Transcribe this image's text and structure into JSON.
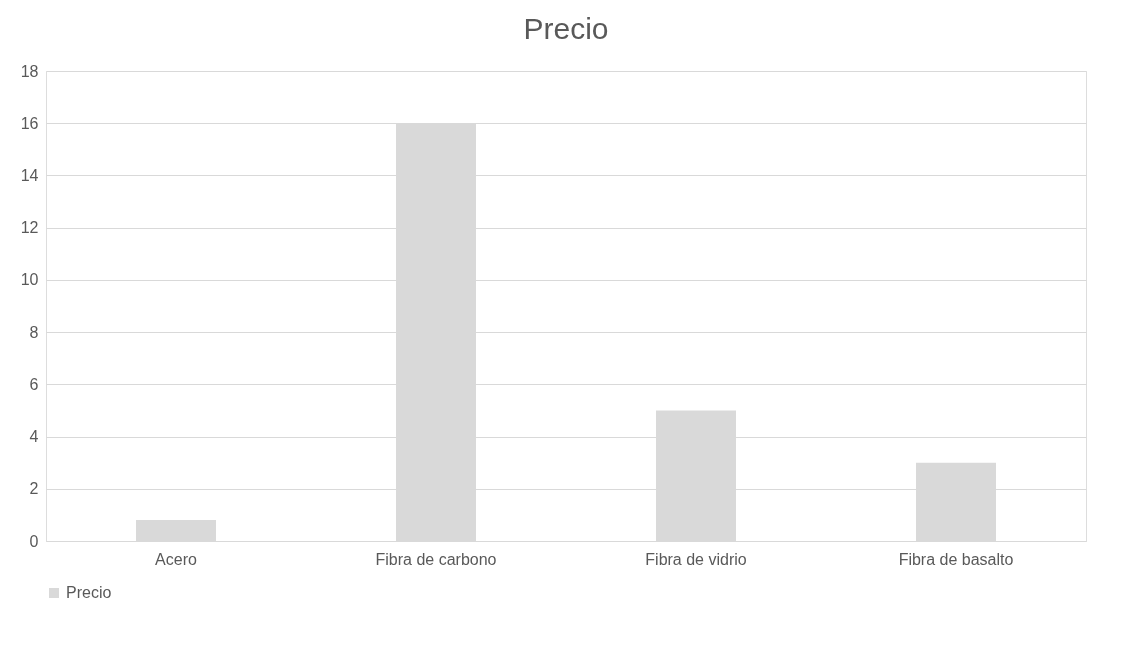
{
  "chart_data": {
    "type": "bar",
    "title": "Precio",
    "categories": [
      "Acero",
      "Fibra de carbono",
      "Fibra de vidrio",
      "Fibra de basalto"
    ],
    "series": [
      {
        "name": "Precio",
        "color": "#d9d9d9",
        "values": [
          0.8,
          16,
          5,
          3
        ]
      }
    ],
    "ylim": [
      0,
      18
    ],
    "yticks": [
      0,
      2,
      4,
      6,
      8,
      10,
      12,
      14,
      16,
      18
    ],
    "grid": "y",
    "legend": "bottom"
  }
}
